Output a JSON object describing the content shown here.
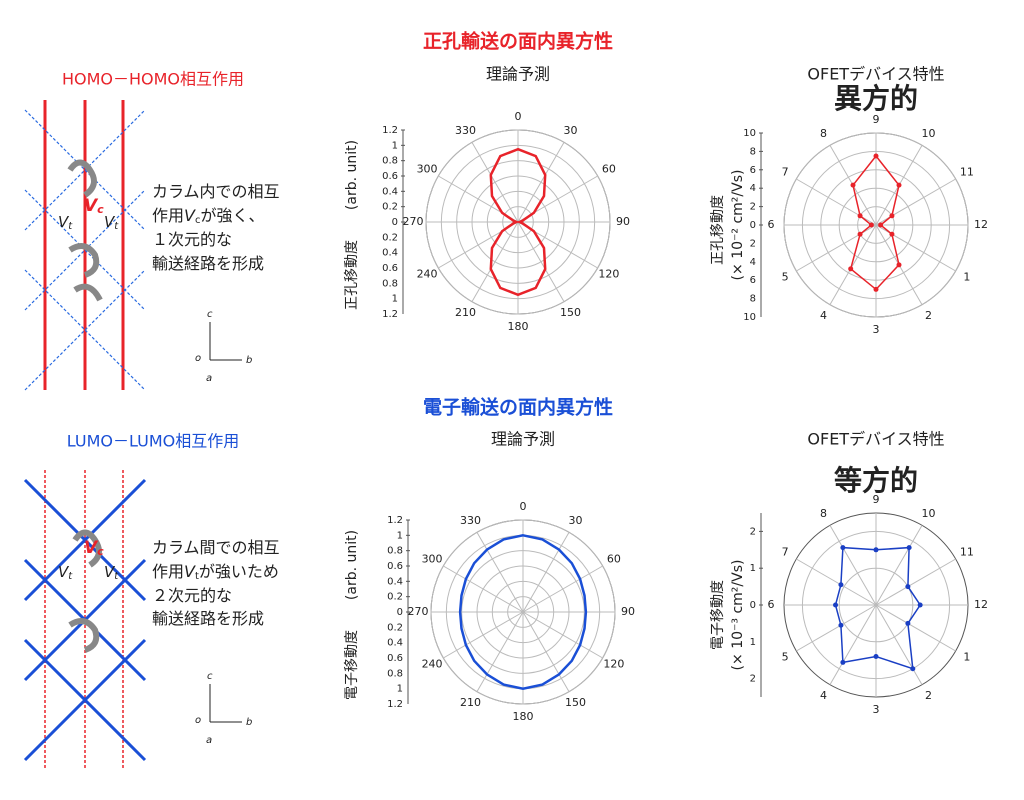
{
  "headings": {
    "hole": "正孔輸送の面内異方性",
    "electron": "電子輸送の面内異方性"
  },
  "panels": [
    {
      "title": "HOMO－HOMO相互作用",
      "lines": [
        [
          "カラム内での相互"
        ],
        [
          "作用",
          "V",
          "c",
          "が強く、"
        ],
        [
          "１次元的な"
        ],
        [
          "輸送経路を形成"
        ]
      ],
      "labels": [
        "V",
        "c",
        "V",
        "t",
        "V",
        "t"
      ],
      "axes": [
        "c",
        "o",
        "b",
        "a"
      ]
    },
    {
      "title": "LUMO－LUMO相互作用",
      "lines": [
        [
          "カラム間での相互"
        ],
        [
          "作用",
          "V",
          "t",
          "が強いため"
        ],
        [
          "２次元的な"
        ],
        [
          "輸送経路を形成"
        ]
      ],
      "labels": [
        "V",
        "c",
        "V",
        "t",
        "V",
        "t"
      ],
      "axes": [
        "c",
        "o",
        "b",
        "a"
      ]
    }
  ],
  "chart_data": [
    {
      "type": "polar",
      "title": "理論予測",
      "ylabel": "正孔移動度",
      "yunit": "(arb. unit)",
      "color": "#e8232a",
      "angle_labels": [
        0,
        30,
        60,
        90,
        120,
        150,
        180,
        210,
        240,
        270,
        300,
        330
      ],
      "rlim": [
        0,
        1.2
      ],
      "rticks": [
        0,
        0.2,
        0.4,
        0.6,
        0.8,
        1,
        1.2
      ],
      "theta": [
        0,
        15,
        30,
        45,
        60,
        75,
        90,
        105,
        120,
        135,
        150,
        165,
        180,
        195,
        210,
        225,
        240,
        255,
        270,
        285,
        300,
        315,
        330,
        345
      ],
      "values": [
        0.95,
        0.89,
        0.71,
        0.48,
        0.24,
        0.06,
        0.02,
        0.06,
        0.24,
        0.48,
        0.71,
        0.89,
        0.95,
        0.89,
        0.71,
        0.48,
        0.24,
        0.06,
        0.02,
        0.06,
        0.24,
        0.48,
        0.71,
        0.89
      ]
    },
    {
      "type": "polar",
      "title": "OFETデバイス特性",
      "annotation": "異方的",
      "ylabel": "正孔移動度",
      "yunit": "(× 10⁻² cm²/Vs)",
      "color": "#e8232a",
      "markers": true,
      "angle_labels": [
        "9",
        "10",
        "11",
        "12",
        "1",
        "2",
        "3",
        "4",
        "5",
        "6",
        "7",
        "8"
      ],
      "rlim": [
        0,
        10
      ],
      "rticks": [
        0,
        2,
        4,
        6,
        8,
        10
      ],
      "values": [
        7.5,
        5,
        2,
        0.5,
        2,
        5,
        7,
        5.5,
        2,
        0.5,
        2,
        5
      ]
    },
    {
      "type": "polar",
      "title": "理論予測",
      "ylabel": "電子移動度",
      "yunit": "(arb. unit)",
      "color": "#1a4fd6",
      "angle_labels": [
        0,
        30,
        60,
        90,
        120,
        150,
        180,
        210,
        240,
        270,
        300,
        330
      ],
      "rlim": [
        0,
        1.2
      ],
      "rticks": [
        0,
        0.2,
        0.4,
        0.6,
        0.8,
        1,
        1.2
      ],
      "theta": [
        0,
        15,
        30,
        45,
        60,
        75,
        90,
        105,
        120,
        135,
        150,
        165,
        180,
        195,
        210,
        225,
        240,
        255,
        270,
        285,
        300,
        315,
        330,
        345
      ],
      "values": [
        1.0,
        0.98,
        0.94,
        0.9,
        0.86,
        0.83,
        0.82,
        0.83,
        0.86,
        0.9,
        0.94,
        0.98,
        1.0,
        0.98,
        0.94,
        0.9,
        0.86,
        0.83,
        0.82,
        0.83,
        0.86,
        0.9,
        0.94,
        0.98
      ]
    },
    {
      "type": "polar",
      "title": "OFETデバイス特性",
      "annotation": "等方的",
      "ylabel": "電子移動度",
      "yunit": "(× 10⁻³ cm²/Vs)",
      "color": "#1a3fc4",
      "markers": true,
      "angle_labels": [
        "9",
        "10",
        "11",
        "12",
        "1",
        "2",
        "3",
        "4",
        "5",
        "6",
        "7",
        "8"
      ],
      "rlim": [
        0,
        2.5
      ],
      "rticks": [
        0,
        1,
        2
      ],
      "values": [
        1.5,
        1.8,
        1.0,
        1.2,
        1.0,
        2.0,
        1.4,
        1.8,
        1.1,
        1.1,
        1.1,
        1.8
      ]
    }
  ]
}
